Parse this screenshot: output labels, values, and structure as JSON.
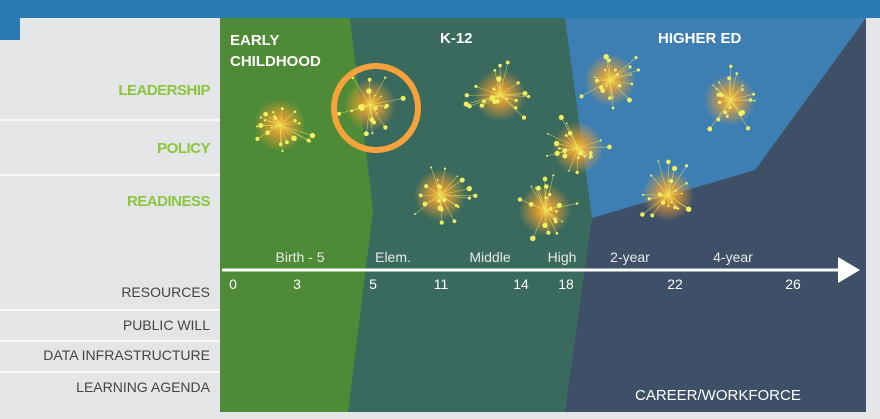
{
  "headers": {
    "early_childhood": "EARLY CHILDHOOD",
    "k12": "K-12",
    "higher_ed": "HIGHER ED",
    "career": "CAREER/WORKFORCE"
  },
  "rows_top": [
    "LEADERSHIP",
    "POLICY",
    "READINESS"
  ],
  "rows_bottom": [
    "RESOURCES",
    "PUBLIC WILL",
    "DATA INFRASTRUCTURE",
    "LEARNING AGENDA"
  ],
  "timeline": {
    "phases": [
      "Birth - 5",
      "Elem.",
      "Middle",
      "High",
      "2-year",
      "4-year"
    ],
    "ages": [
      0,
      3,
      5,
      11,
      14,
      18,
      22,
      26
    ]
  }
}
